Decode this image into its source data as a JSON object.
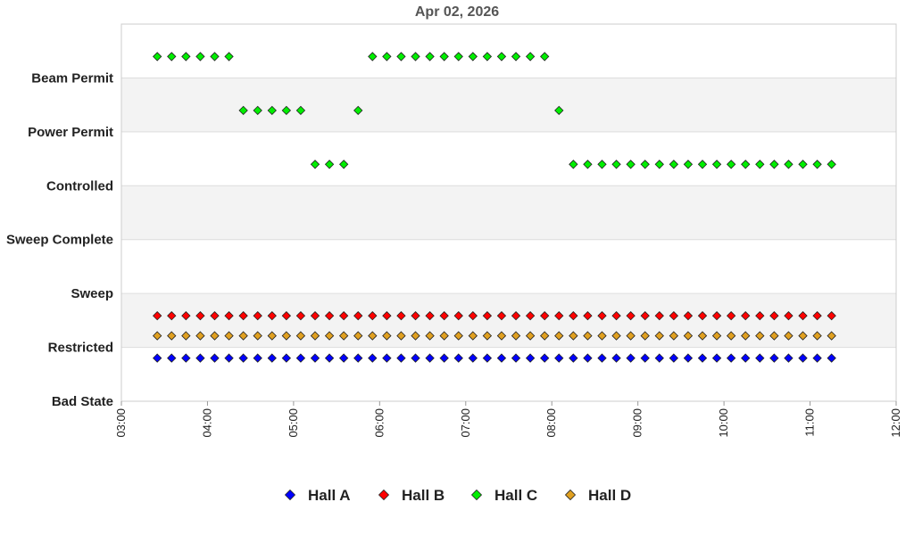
{
  "chart_data": {
    "type": "scatter",
    "title": "Apr 02, 2026",
    "xlabel": "",
    "ylabel": "",
    "x_ticks": [
      "03:00",
      "04:00",
      "05:00",
      "06:00",
      "07:00",
      "08:00",
      "09:00",
      "10:00",
      "11:00",
      "12:00"
    ],
    "xlim": [
      "03:00",
      "12:00"
    ],
    "y_categories": [
      "Bad State",
      "Restricted",
      "Sweep",
      "Sweep Complete",
      "Controlled",
      "Power Permit",
      "Beam Permit"
    ],
    "grid": "alternating horizontal bands",
    "legend_position": "bottom",
    "series": [
      {
        "name": "Hall A",
        "color": "#0000ff",
        "points": [
          {
            "ranges": [
              [
                "03:25",
                "11:15"
              ]
            ],
            "state": "Restricted",
            "interval_minutes": 10
          }
        ]
      },
      {
        "name": "Hall B",
        "color": "#ff0000",
        "points": [
          {
            "ranges": [
              [
                "03:25",
                "11:15"
              ]
            ],
            "state": "Sweep",
            "interval_minutes": 10
          }
        ]
      },
      {
        "name": "Hall C",
        "color": "#00ee00",
        "points": [
          {
            "ranges": [
              [
                "03:25",
                "04:15"
              ]
            ],
            "state": "Beam Permit",
            "interval_minutes": 10
          },
          {
            "ranges": [
              [
                "04:25",
                "05:05"
              ]
            ],
            "state": "Power Permit",
            "interval_minutes": 10
          },
          {
            "ranges": [
              [
                "05:15",
                "05:35"
              ]
            ],
            "state": "Controlled",
            "interval_minutes": 10
          },
          {
            "ranges": [
              [
                "05:45",
                "05:45"
              ]
            ],
            "state": "Power Permit",
            "interval_minutes": 10
          },
          {
            "ranges": [
              [
                "05:55",
                "07:55"
              ]
            ],
            "state": "Beam Permit",
            "interval_minutes": 10
          },
          {
            "ranges": [
              [
                "08:05",
                "08:05"
              ]
            ],
            "state": "Power Permit",
            "interval_minutes": 10
          },
          {
            "ranges": [
              [
                "08:15",
                "11:15"
              ]
            ],
            "state": "Controlled",
            "interval_minutes": 10
          }
        ]
      },
      {
        "name": "Hall D",
        "color": "#e0a020",
        "points": [
          {
            "ranges": [
              [
                "03:25",
                "11:15"
              ]
            ],
            "state": "Restricted",
            "interval_minutes": 10
          }
        ]
      }
    ]
  }
}
